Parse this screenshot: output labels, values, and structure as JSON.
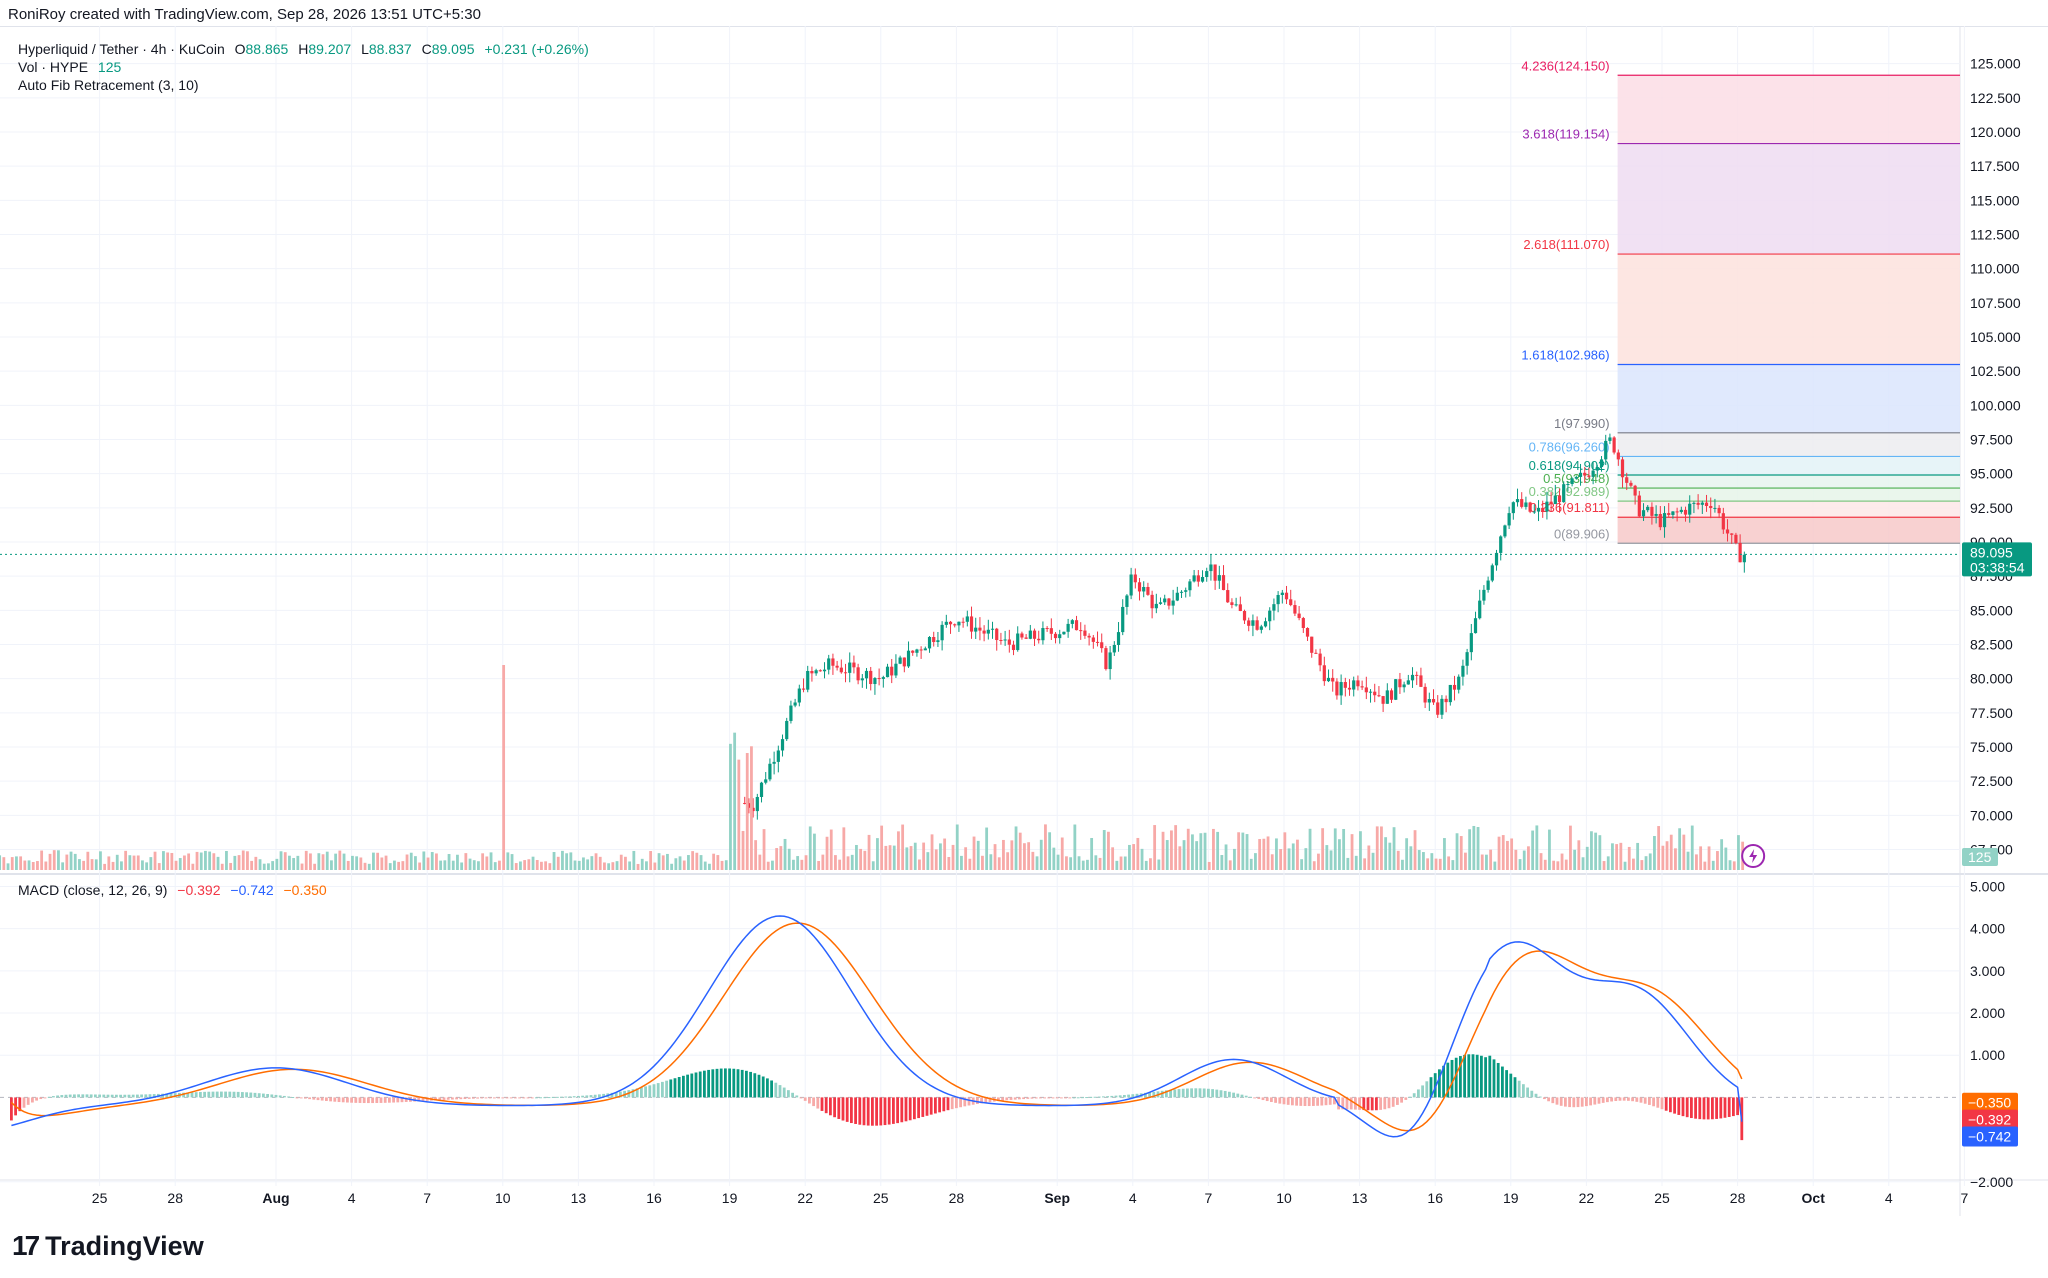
{
  "header": {
    "credit": "RoniRoy created with TradingView.com, Sep 28, 2026 13:51 UTC+5:30"
  },
  "legend": {
    "symbol": "Hyperliquid / Tether · 4h · KuCoin",
    "open_label": "O",
    "open": "88.865",
    "high_label": "H",
    "high": "89.207",
    "low_label": "L",
    "low": "88.837",
    "close_label": "C",
    "close": "89.095",
    "change": "+0.231 (+0.26%)",
    "vol_label": "Vol · HYPE",
    "vol_value": "125",
    "fib_label": "Auto Fib Retracement (3, 10)",
    "macd_label": "MACD (close, 12, 26, 9)",
    "macd_hist": "−0.392",
    "macd_line": "−0.742",
    "macd_signal": "−0.350"
  },
  "colors": {
    "up": "#089981",
    "down": "#f23645",
    "macd": "#2962ff",
    "signal": "#ff6d00",
    "up_light": "#92d2c6",
    "down_light": "#f7a9a7"
  },
  "price_badge": {
    "price": "89.095",
    "countdown": "03:38:54"
  },
  "volume_badge": "125",
  "macd_badges": [
    "−0.350",
    "−0.392",
    "−0.742"
  ],
  "chart_data": {
    "type": "candlestick",
    "title": "Hyperliquid / Tether · 4h · KuCoin",
    "y_price_ticks": [
      "125.000",
      "122.500",
      "120.000",
      "117.500",
      "115.000",
      "112.500",
      "110.000",
      "107.500",
      "105.000",
      "102.500",
      "100.000",
      "97.500",
      "95.000",
      "92.500",
      "90.000",
      "87.500",
      "85.000",
      "82.500",
      "80.000",
      "77.500",
      "75.000",
      "72.500",
      "70.000",
      "67.500"
    ],
    "y_macd_ticks": [
      "5.000",
      "4.000",
      "3.000",
      "2.000",
      "1.000",
      "−2.000"
    ],
    "x_ticks": [
      "25",
      "28",
      "Aug",
      "4",
      "7",
      "10",
      "13",
      "16",
      "19",
      "22",
      "25",
      "28",
      "Sep",
      "4",
      "7",
      "10",
      "13",
      "16",
      "19",
      "22",
      "25",
      "28",
      "Oct",
      "4",
      "7"
    ],
    "price_range": [
      66,
      126
    ],
    "macd_range": [
      -2.1,
      5.2
    ],
    "close_path": [
      [
        "Aug 20",
        71
      ],
      [
        "Aug 21",
        75.5
      ],
      [
        "Aug 22",
        80
      ],
      [
        "Aug 23",
        81
      ],
      [
        "Aug 25",
        80
      ],
      [
        "Aug 27",
        83
      ],
      [
        "Aug 28",
        84.5
      ],
      [
        "Aug 30",
        82.5
      ],
      [
        "Sep 1",
        83.5
      ],
      [
        "Sep 2",
        84
      ],
      [
        "Sep 3",
        81
      ],
      [
        "Sep 4",
        87.5
      ],
      [
        "Sep 5",
        85
      ],
      [
        "Sep 6",
        86.5
      ],
      [
        "Sep 7",
        88.5
      ],
      [
        "Sep 8",
        85
      ],
      [
        "Sep 9",
        84
      ],
      [
        "Sep 10",
        86.5
      ],
      [
        "Sep 11",
        82.5
      ],
      [
        "Sep 12",
        79
      ],
      [
        "Sep 13",
        80
      ],
      [
        "Sep 14",
        78.5
      ],
      [
        "Sep 15",
        80.5
      ],
      [
        "Sep 16",
        77.5
      ],
      [
        "Sep 17",
        80
      ],
      [
        "Sep 18",
        87
      ],
      [
        "Sep 19",
        93
      ],
      [
        "Sep 20",
        92
      ],
      [
        "Sep 21",
        93.5
      ],
      [
        "Sep 22",
        95
      ],
      [
        "Sep 23",
        97.5
      ],
      [
        "Sep 24",
        92.5
      ],
      [
        "Sep 25",
        91.5
      ],
      [
        "Sep 26",
        92.5
      ],
      [
        "Sep 27",
        93
      ],
      [
        "Sep 28",
        89.1
      ]
    ],
    "volume_spike": {
      "date": "Aug 10",
      "label": "spike"
    },
    "fib_levels": [
      {
        "label": "0(89.906)",
        "value": 89.906,
        "fill": "#f7c9c9",
        "line": "#9598a1"
      },
      {
        "label": "0.236(91.811)",
        "value": 91.811,
        "fill": "#fde7e7",
        "line": "#f23645"
      },
      {
        "label": "0.382(92.989)",
        "value": 92.989,
        "fill": "#e6f4e9",
        "line": "#81c784"
      },
      {
        "label": "0.5(93.948)",
        "value": 93.948,
        "fill": "#e6f5ef",
        "line": "#4caf50"
      },
      {
        "label": "0.618(94.902)",
        "value": 94.902,
        "fill": "#e3f2f7",
        "line": "#089981"
      },
      {
        "label": "0.786(96.260)",
        "value": 96.26,
        "fill": "#ececf0",
        "line": "#64b5f6"
      },
      {
        "label": "1(97.990)",
        "value": 97.99,
        "fill": "#dbe5fd",
        "line": "#787b86"
      },
      {
        "label": "1.618(102.986)",
        "value": 102.986,
        "fill": "#fde2dd",
        "line": "#2962ff"
      },
      {
        "label": "2.618(111.070)",
        "value": 111.07,
        "fill": "#efdcf1",
        "line": "#f23645"
      },
      {
        "label": "3.618(119.154)",
        "value": 119.154,
        "fill": "#fbdde5",
        "line": "#9c27b0"
      },
      {
        "label": "4.236(124.150)",
        "value": 124.15,
        "fill": "none",
        "line": "#e91e63"
      }
    ],
    "last_price": 89.095,
    "macd_last": {
      "hist": -0.392,
      "macd": -0.742,
      "signal": -0.35
    }
  },
  "branding": {
    "logo_mark": "17",
    "logo_text": "TradingView"
  }
}
